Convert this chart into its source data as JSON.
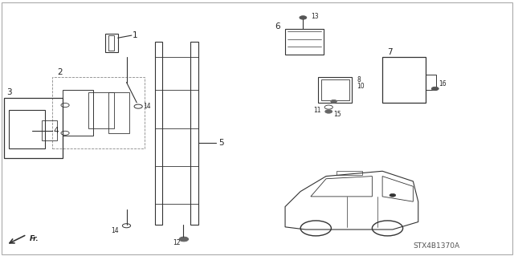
{
  "background_color": "#ffffff",
  "diagram_code": "STX4B1370A",
  "line_color": "#333333",
  "text_color": "#222222",
  "label_font_size": 7.5,
  "small_font_size": 5.5,
  "code_font_size": 6.5
}
